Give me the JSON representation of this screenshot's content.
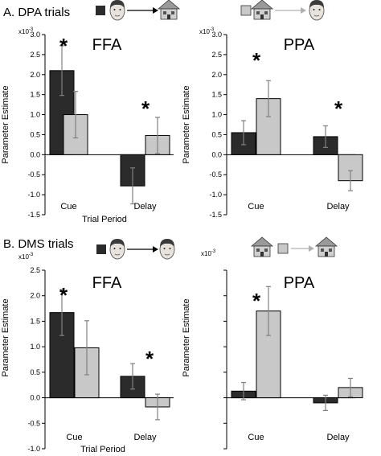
{
  "sections": [
    {
      "label": "A. DPA trials"
    },
    {
      "label": "B. DMS trials"
    }
  ],
  "icons": {
    "dark_square": "#2b2b2b",
    "light_square": "#c8c8c8",
    "face": "face-icon",
    "house": "house-icon",
    "arrow_dark": "#000000",
    "arrow_light": "#b0b0b0"
  },
  "colors": {
    "dark_bar": "#2b2b2b",
    "light_bar": "#c8c8c8",
    "error_bar": "#808080"
  },
  "chart_data": [
    {
      "type": "bar",
      "section": "A. DPA trials",
      "title": "FFA",
      "ylabel": "Parameter Estimate",
      "xlabel": "Trial Period",
      "multiplier": "x10",
      "exponent": "-3",
      "ylim": [
        -1.5,
        3.0
      ],
      "yticks": [
        "-1.5",
        "-1.0",
        "-0.5",
        "0.0",
        "0.5",
        "1.0",
        "1.5",
        "2.0",
        "2.5",
        "3.0"
      ],
      "categories": [
        "Cue",
        "Delay"
      ],
      "series": [
        {
          "color": "#2b2b2b",
          "values": [
            2.1,
            -0.78
          ],
          "errors": [
            0.62,
            0.45
          ]
        },
        {
          "color": "#c8c8c8",
          "values": [
            1.0,
            0.48
          ],
          "errors": [
            0.58,
            0.45
          ]
        }
      ],
      "significance": [
        "*",
        "*"
      ]
    },
    {
      "type": "bar",
      "section": "A. DPA trials",
      "title": "PPA",
      "ylabel": "Parameter Estimate",
      "xlabel": "",
      "multiplier": "x10",
      "exponent": "-3",
      "ylim": [
        -1.5,
        3.0
      ],
      "yticks": [
        "-1.5",
        "-1.0",
        "-0.5",
        "0.0",
        "0.5",
        "1.0",
        "1.5",
        "2.0",
        "2.5",
        "3.0"
      ],
      "categories": [
        "Cue",
        "Delay"
      ],
      "series": [
        {
          "color": "#2b2b2b",
          "values": [
            0.55,
            0.45
          ],
          "errors": [
            0.3,
            0.27
          ]
        },
        {
          "color": "#c8c8c8",
          "values": [
            1.4,
            -0.65
          ],
          "errors": [
            0.45,
            0.25
          ]
        }
      ],
      "significance": [
        "*",
        "*"
      ]
    },
    {
      "type": "bar",
      "section": "B. DMS trials",
      "title": "FFA",
      "ylabel": "Parameter Estimate",
      "xlabel": "Trial Period",
      "multiplier": "x10",
      "exponent": "-3",
      "ylim": [
        -1.0,
        2.5
      ],
      "yticks": [
        "-1.0",
        "-0.5",
        "0.0",
        "0.5",
        "1.0",
        "1.5",
        "2.0",
        "2.5"
      ],
      "categories": [
        "Cue",
        "Delay"
      ],
      "series": [
        {
          "color": "#2b2b2b",
          "values": [
            1.67,
            0.42
          ],
          "errors": [
            0.45,
            0.25
          ]
        },
        {
          "color": "#c8c8c8",
          "values": [
            0.98,
            -0.18
          ],
          "errors": [
            0.53,
            0.25
          ]
        }
      ],
      "significance": [
        "*",
        "*"
      ]
    },
    {
      "type": "bar",
      "section": "B. DMS trials",
      "title": "PPA",
      "ylabel": "Parameter Estimate",
      "xlabel": "",
      "multiplier": "x10",
      "exponent": "-3",
      "ylim": [
        -1.0,
        2.5
      ],
      "yticks": [],
      "categories": [
        "Cue",
        "Delay"
      ],
      "series": [
        {
          "color": "#2b2b2b",
          "values": [
            0.13,
            -0.1
          ],
          "errors": [
            0.17,
            0.15
          ]
        },
        {
          "color": "#c8c8c8",
          "values": [
            1.7,
            0.2
          ],
          "errors": [
            0.48,
            0.18
          ]
        }
      ],
      "significance": [
        "*",
        ""
      ]
    }
  ]
}
